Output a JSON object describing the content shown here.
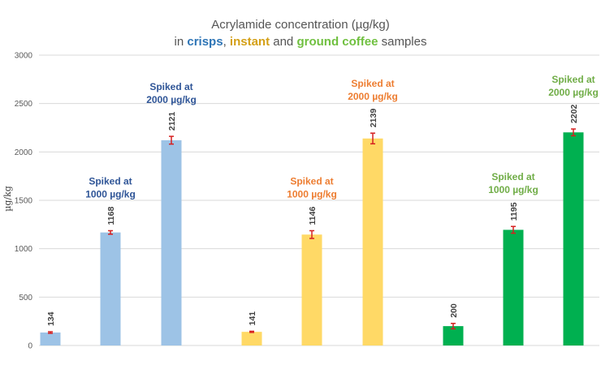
{
  "chart_data": {
    "type": "bar",
    "title_lines": [
      [
        {
          "text": "Acrylamide concentration (µg/kg)",
          "color": "#555555"
        }
      ],
      [
        {
          "text": "in ",
          "color": "#555555"
        },
        {
          "text": "crisps",
          "color": "#2e75b6",
          "bold": true
        },
        {
          "text": ", ",
          "color": "#555555"
        },
        {
          "text": "instant",
          "color": "#d4a017",
          "bold": true
        },
        {
          "text": " and ",
          "color": "#555555"
        },
        {
          "text": "ground coffee",
          "color": "#70c040",
          "bold": true
        },
        {
          "text": " samples",
          "color": "#555555"
        }
      ]
    ],
    "ylabel": "µg/kg",
    "ylim": [
      0,
      3000
    ],
    "yticks": [
      0,
      500,
      1000,
      1500,
      2000,
      2500,
      3000
    ],
    "grid": true,
    "bars": [
      {
        "value": 134,
        "error": 8,
        "color": "#9dc3e6",
        "label": "134"
      },
      {
        "value": 1168,
        "error": 18,
        "color": "#9dc3e6",
        "label": "1168"
      },
      {
        "value": 2121,
        "error": 40,
        "color": "#9dc3e6",
        "label": "2121"
      },
      {
        "value": 141,
        "error": 6,
        "color": "#ffd966",
        "label": "141"
      },
      {
        "value": 1146,
        "error": 40,
        "color": "#ffd966",
        "label": "1146"
      },
      {
        "value": 2139,
        "error": 55,
        "color": "#ffd966",
        "label": "2139"
      },
      {
        "value": 200,
        "error": 28,
        "color": "#00b050",
        "label": "200"
      },
      {
        "value": 1195,
        "error": 35,
        "color": "#00b050",
        "label": "1195"
      },
      {
        "value": 2202,
        "error": 35,
        "color": "#00b050",
        "label": "2202"
      }
    ],
    "annotations": [
      {
        "lines": [
          "Spiked at",
          "1000 µg/kg"
        ],
        "color": "#2f5597",
        "bar": 1
      },
      {
        "lines": [
          "Spiked at",
          "2000 µg/kg"
        ],
        "color": "#2f5597",
        "bar": 2
      },
      {
        "lines": [
          "Spiked at",
          "1000 µg/kg"
        ],
        "color": "#ed7d31",
        "bar": 4
      },
      {
        "lines": [
          "Spiked at",
          "2000 µg/kg"
        ],
        "color": "#ed7d31",
        "bar": 5
      },
      {
        "lines": [
          "Spiked at",
          "1000 µg/kg"
        ],
        "color": "#70ad47",
        "bar": 7
      },
      {
        "lines": [
          "Spiked at",
          "2000 µg/kg"
        ],
        "color": "#70ad47",
        "bar": 8
      }
    ]
  }
}
